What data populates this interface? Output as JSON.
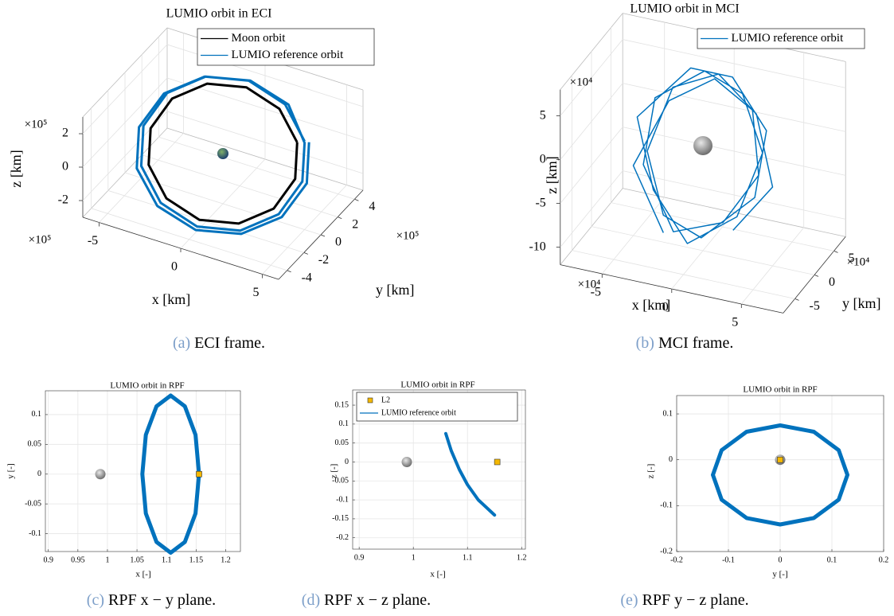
{
  "chart_data": [
    {
      "type": "line3d",
      "title": "LUMIO orbit in ECI",
      "caption_label": "(a)",
      "caption": "ECI frame.",
      "x_label": "x [km]",
      "y_label": "y [km]",
      "z_label": "z [km]",
      "x_exponent": "×10⁵",
      "y_exponent": "×10⁵",
      "z_exponent": "×10⁵",
      "xlim": [
        -6,
        6
      ],
      "ylim": [
        -5,
        5
      ],
      "zlim": [
        -3,
        3
      ],
      "xticks": [
        -5,
        0,
        5
      ],
      "yticks": [
        -4,
        -2,
        0,
        2,
        4
      ],
      "zticks": [
        -2,
        0,
        2
      ],
      "legend": "top-right",
      "grid": true,
      "series": [
        {
          "name": "Moon orbit",
          "color": "#000000",
          "x": [
            3,
            1.6,
            -0.23,
            -2,
            -3.23,
            -3.6,
            -3,
            -1.6,
            0.23,
            2,
            3.23,
            3.6,
            3
          ],
          "y": [
            3,
            3.6,
            3.23,
            2,
            0.23,
            -1.6,
            -3,
            -3.6,
            -3.23,
            -2,
            -0.23,
            1.6,
            3
          ],
          "z": [
            0,
            1.25,
            2.17,
            2.5,
            2.17,
            1.25,
            0,
            -1.25,
            -2.17,
            -2.5,
            -2.17,
            -1.25,
            0
          ]
        },
        {
          "name": "LUMIO reference orbit",
          "color": "#0072bd",
          "x": [
            3.3,
            1.76,
            -0.25,
            -2.2,
            -3.55,
            -3.96,
            -3.3,
            -1.76,
            0.25,
            2.2,
            3.55,
            3.96,
            3.3,
            1.86,
            -0.27,
            -2.32,
            -3.75,
            -4.18,
            -3.48,
            -1.86,
            0.27,
            2.32,
            3.75,
            4.18,
            3.48
          ],
          "y": [
            3.3,
            3.96,
            3.55,
            2.2,
            0.25,
            -1.76,
            -3.3,
            -3.96,
            -3.55,
            -2.2,
            -0.25,
            1.76,
            3.3,
            4.18,
            3.75,
            2.32,
            0.27,
            -1.86,
            -3.48,
            -4.18,
            -3.75,
            -2.32,
            -0.27,
            1.86,
            3.48
          ],
          "z": [
            0,
            1.38,
            2.39,
            2.75,
            2.39,
            1.38,
            0,
            -1.38,
            -2.39,
            -2.75,
            -2.39,
            -1.38,
            -0.1,
            1.28,
            2.29,
            2.65,
            2.29,
            1.28,
            -0.1,
            -1.48,
            -2.49,
            -2.85,
            -2.49,
            -1.48,
            -0.1
          ]
        }
      ]
    },
    {
      "type": "line3d",
      "title": "LUMIO orbit in MCI",
      "caption_label": "(b)",
      "caption": "MCI frame.",
      "x_label": "x [km]",
      "y_label": "y [km]",
      "z_label": "z [km]",
      "x_exponent": "×10⁴",
      "y_exponent": "×10⁴",
      "z_exponent": "×10⁴",
      "xlim": [
        -8,
        8
      ],
      "ylim": [
        -8,
        8
      ],
      "zlim": [
        -12,
        8
      ],
      "xticks": [
        -5,
        0,
        5
      ],
      "yticks": [
        -5,
        0,
        5
      ],
      "zticks": [
        -10,
        -5,
        0,
        5
      ],
      "legend": "top-right",
      "grid": true,
      "series": [
        {
          "name": "LUMIO reference orbit",
          "color": "#0072bd",
          "x": [
            -2,
            -5,
            -3,
            0,
            3,
            4,
            2,
            -1,
            -4,
            -4,
            -1,
            2,
            4,
            3,
            0,
            -3,
            -5,
            -2,
            1,
            4,
            4,
            1,
            -2,
            -4,
            -3,
            0,
            3,
            5,
            3
          ],
          "y": [
            -3,
            0,
            2,
            3,
            2,
            0,
            -2,
            -4,
            -1,
            2,
            4,
            3,
            1,
            -2,
            -4,
            -2,
            1,
            4,
            4,
            2,
            -1,
            -4,
            -3,
            0,
            3,
            4,
            3,
            0,
            -3
          ],
          "z": [
            -9,
            -4,
            3,
            6,
            4,
            -2,
            -7,
            -8,
            -3,
            3,
            6,
            5,
            0,
            -6,
            -9,
            -5,
            1,
            6,
            6,
            2,
            -4,
            -8,
            -7,
            -2,
            4,
            6,
            3,
            -3,
            -7
          ]
        }
      ]
    },
    {
      "type": "line",
      "title": "LUMIO orbit in RPF",
      "caption_label": "(c)",
      "caption": "RPF x − y plane.",
      "x_label": "x [-]",
      "y_label": "y [-]",
      "xlim": [
        0.895,
        1.225
      ],
      "ylim": [
        -0.13,
        0.14
      ],
      "xticks": [
        0.9,
        0.95,
        1,
        1.05,
        1.1,
        1.15,
        1.2
      ],
      "yticks": [
        -0.1,
        -0.05,
        0,
        0.05,
        0.1
      ],
      "grid": true,
      "moon": {
        "x": 0.988,
        "y": 0
      },
      "l2": {
        "x": 1.155,
        "y": 0,
        "color": "#f5b800"
      },
      "series": [
        {
          "color": "#0072bd",
          "x": [
            1.155,
            1.149,
            1.131,
            1.107,
            1.083,
            1.065,
            1.059,
            1.065,
            1.083,
            1.107,
            1.131,
            1.149,
            1.155
          ],
          "y": [
            0,
            0.066,
            0.114,
            0.132,
            0.114,
            0.066,
            0,
            -0.066,
            -0.114,
            -0.132,
            -0.114,
            -0.066,
            0
          ]
        }
      ]
    },
    {
      "type": "line",
      "title": "LUMIO orbit in RPF",
      "caption_label": "(d)",
      "caption": "RPF x − z plane.",
      "x_label": "x [-]",
      "y_label": "z [-]",
      "xlim": [
        0.888,
        1.207
      ],
      "ylim": [
        -0.23,
        0.19
      ],
      "xticks": [
        0.9,
        1,
        1.1,
        1.2
      ],
      "yticks": [
        -0.2,
        -0.15,
        -0.1,
        -0.05,
        0,
        0.05,
        0.1,
        0.15
      ],
      "grid": true,
      "legend": "top-left",
      "moon": {
        "x": 0.988,
        "y": 0
      },
      "l2": {
        "name": "L2",
        "x": 1.155,
        "y": 0,
        "color": "#f5b800"
      },
      "series": [
        {
          "name": "LUMIO reference orbit",
          "color": "#0072bd",
          "x": [
            1.06,
            1.07,
            1.085,
            1.1,
            1.12,
            1.15
          ],
          "y": [
            0.075,
            0.03,
            -0.02,
            -0.06,
            -0.1,
            -0.14
          ]
        }
      ]
    },
    {
      "type": "line",
      "title": "LUMIO orbit in RPF",
      "caption_label": "(e)",
      "caption": "RPF y − z plane.",
      "x_label": "y [-]",
      "y_label": "z [-]",
      "xlim": [
        -0.2,
        0.2
      ],
      "ylim": [
        -0.2,
        0.14
      ],
      "xticks": [
        -0.2,
        -0.1,
        0,
        0.1,
        0.2
      ],
      "yticks": [
        -0.2,
        -0.1,
        0,
        0.1
      ],
      "grid": true,
      "moon": {
        "x": 0,
        "y": 0
      },
      "l2": {
        "x": 0,
        "y": 0,
        "color": "#f5b800"
      },
      "series": [
        {
          "color": "#0072bd",
          "x": [
            0.13,
            0.113,
            0.065,
            0,
            -0.065,
            -0.113,
            -0.13,
            -0.113,
            -0.065,
            0,
            0.065,
            0.113,
            0.13
          ],
          "y": [
            -0.033,
            0.021,
            0.061,
            0.075,
            0.061,
            0.021,
            -0.033,
            -0.087,
            -0.127,
            -0.141,
            -0.127,
            -0.087,
            -0.033
          ]
        }
      ]
    }
  ]
}
